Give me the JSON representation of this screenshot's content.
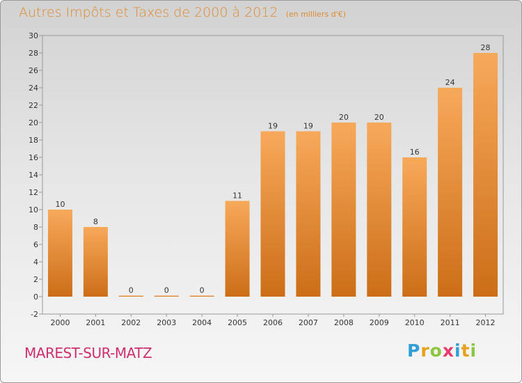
{
  "commune": "MAREST-SUR-MATZ",
  "logo": {
    "letters": [
      {
        "char": "P",
        "color": "#2f9fd8"
      },
      {
        "char": "r",
        "color": "#e8a219"
      },
      {
        "char": "o",
        "color": "#8cc63f"
      },
      {
        "char": "x",
        "color": "#e83a6e"
      },
      {
        "char": "i",
        "color": "#2f9fd8"
      },
      {
        "char": "t",
        "color": "#e8a219"
      },
      {
        "char": "i",
        "color": "#8cc63f"
      }
    ]
  },
  "colors": {
    "bar_top": "#f7a95a",
    "bar_bottom": "#cc6e18",
    "title": "#e08a2c",
    "commune": "#cf2f6f"
  },
  "chart_data": {
    "type": "bar",
    "title": "Autres Impôts et Taxes de 2000 à 2012",
    "unit": "(en milliers d'€)",
    "xlabel": "",
    "ylabel": "",
    "categories": [
      "2000",
      "2001",
      "2002",
      "2003",
      "2004",
      "2005",
      "2006",
      "2007",
      "2008",
      "2009",
      "2010",
      "2011",
      "2012"
    ],
    "values": [
      10,
      8,
      0,
      0,
      0,
      11,
      19,
      19,
      20,
      20,
      16,
      24,
      28
    ],
    "ylim": [
      -2,
      30
    ],
    "yticks": [
      -2,
      0,
      2,
      4,
      6,
      8,
      10,
      12,
      14,
      16,
      18,
      20,
      22,
      24,
      26,
      28,
      30
    ],
    "grid": false,
    "legend": "none"
  }
}
